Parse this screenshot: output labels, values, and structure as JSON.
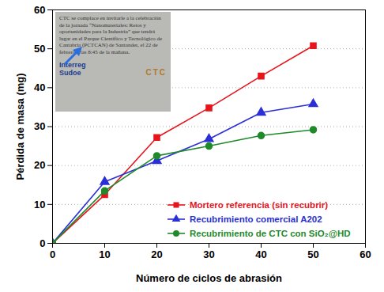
{
  "chart_data": {
    "type": "line",
    "xlabel": "Número de ciclos de abrasión",
    "ylabel": "Pérdida de masa (mg)",
    "x": [
      0,
      10,
      20,
      30,
      40,
      50
    ],
    "series": [
      {
        "name": "Mortero referencia (sin recubrir)",
        "color": "#e8141c",
        "marker": "square",
        "values": [
          0,
          12.5,
          27.2,
          34.8,
          43,
          50.8
        ]
      },
      {
        "name": "Recubrimiento comercial A202",
        "color": "#2a2fd6",
        "marker": "triangle",
        "values": [
          0,
          15.8,
          21.2,
          26.8,
          33.6,
          35.8
        ]
      },
      {
        "name": "Recubrimiento de CTC con SiO₂@HD",
        "color": "#1f8a2a",
        "marker": "circle",
        "values": [
          0,
          13.5,
          22.5,
          25,
          27.7,
          29.2
        ]
      }
    ],
    "xlim": [
      0,
      60
    ],
    "xticks": [
      0,
      10,
      20,
      30,
      40,
      50,
      60
    ],
    "ylim": [
      0,
      60
    ],
    "yticks": [
      0,
      10,
      20,
      30,
      40,
      50,
      60
    ],
    "grid": "y",
    "legend": "bottom-right",
    "inset": {
      "text": "CTC se complace en invitarle a la celebración de la jornada “Nanomateriales: Retos y oportunidades para la Industria” que tendrá lugar en el Parque Científico y Tecnológico de Cantabria (PCTCAN) de Santander, el 22 de febrero a las 8:45 de la mañana.",
      "logos": [
        "Interreg",
        "Sudoe",
        "CTC"
      ]
    }
  }
}
